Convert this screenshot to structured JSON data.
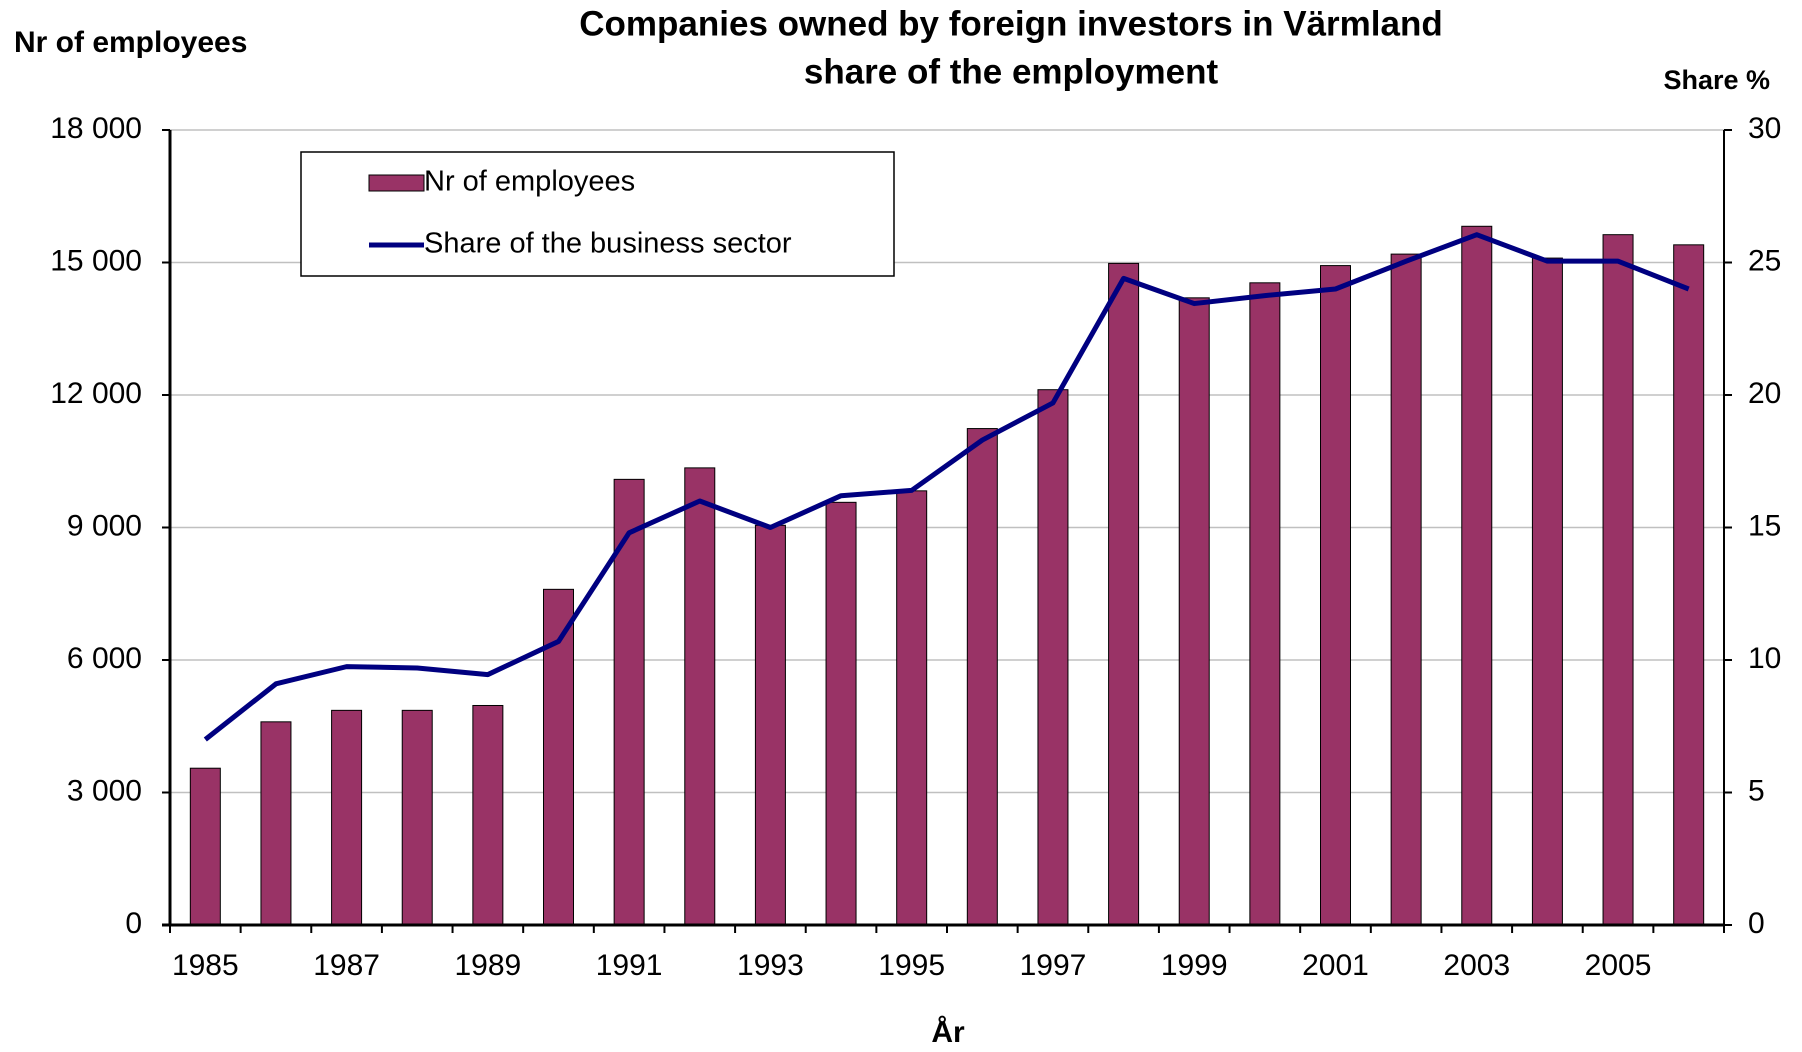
{
  "chart_data": {
    "type": "bar_line",
    "title": "Companies owned by foreign investors in Värmland",
    "subtitle": "share of the employment",
    "y_label": "Nr of employees",
    "y2_label": "Share %",
    "x_label": "År",
    "categories": [
      "1985",
      null,
      "1987",
      null,
      "1989",
      null,
      "1991",
      null,
      "1993",
      null,
      "1995",
      null,
      "1997",
      null,
      "1999",
      null,
      "2001",
      null,
      "2003",
      null,
      "2005",
      null
    ],
    "series": [
      {
        "name": "Nr of employees",
        "type": "bar",
        "color": "#993366",
        "axis": "y",
        "values": [
          3550,
          4600,
          4860,
          4860,
          4970,
          7600,
          10090,
          10350,
          9050,
          9570,
          9830,
          11240,
          12120,
          14980,
          14200,
          14540,
          14930,
          15190,
          15820,
          15100,
          15630,
          15400
        ]
      },
      {
        "name": "Share of the business sector",
        "type": "line",
        "color": "#000080",
        "axis": "y2",
        "values": [
          7.0,
          9.1,
          9.75,
          9.7,
          9.45,
          10.7,
          14.8,
          16.0,
          15.0,
          16.2,
          16.4,
          18.3,
          19.7,
          24.4,
          23.45,
          23.75,
          24.0,
          25.05,
          26.05,
          25.05,
          25.05,
          24.0
        ]
      }
    ],
    "ylim": [
      0,
      18000
    ],
    "yticks": [
      0,
      {
        "value": 3000,
        "label": "3 000"
      },
      {
        "value": 6000,
        "label": "6 000"
      },
      {
        "value": 9000,
        "label": "9 000"
      },
      {
        "value": 12000,
        "label": "12 000"
      },
      {
        "value": 15000,
        "label": "15 000"
      },
      {
        "value": 18000,
        "label": "18 000"
      }
    ],
    "y2lim": [
      0,
      30
    ],
    "y2ticks": [
      0,
      5,
      10,
      15,
      20,
      25,
      30
    ],
    "grid": true,
    "legend": "top-left"
  }
}
